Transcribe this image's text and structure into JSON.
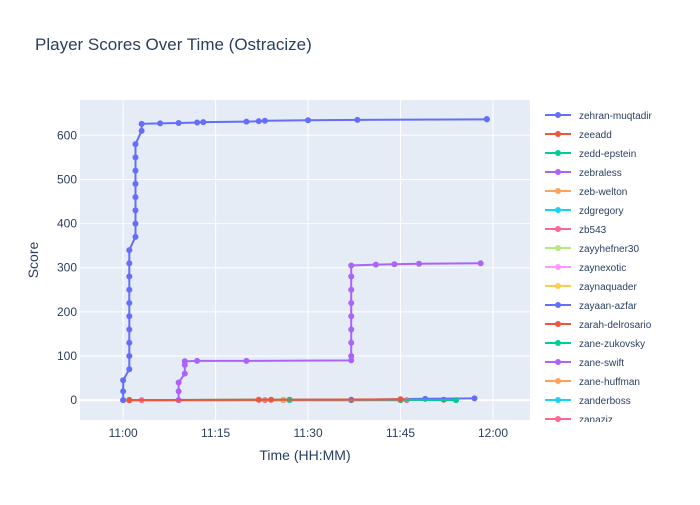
{
  "chart_data": {
    "type": "line",
    "title": "Player Scores Over Time (Ostracize)",
    "xlabel": "Time (HH:MM)",
    "ylabel": "Score",
    "x_range": [
      "10:53",
      "12:06"
    ],
    "ylim": [
      -45,
      680
    ],
    "x_ticks": [
      {
        "t": "11:00",
        "label": "11:00"
      },
      {
        "t": "11:15",
        "label": "11:15"
      },
      {
        "t": "11:30",
        "label": "11:30"
      },
      {
        "t": "11:45",
        "label": "11:45"
      },
      {
        "t": "12:00",
        "label": "12:00"
      }
    ],
    "y_ticks": [
      0,
      100,
      200,
      300,
      400,
      500,
      600
    ],
    "grid": true,
    "legend_position": "right",
    "series": [
      {
        "name": "zehran-muqtadir",
        "color": "#636efa",
        "points": [
          {
            "t": "11:00",
            "y": 0
          },
          {
            "t": "11:00",
            "y": 20
          },
          {
            "t": "11:00",
            "y": 45
          },
          {
            "t": "11:01",
            "y": 70
          },
          {
            "t": "11:01",
            "y": 100
          },
          {
            "t": "11:01",
            "y": 130
          },
          {
            "t": "11:01",
            "y": 160
          },
          {
            "t": "11:01",
            "y": 190
          },
          {
            "t": "11:01",
            "y": 220
          },
          {
            "t": "11:01",
            "y": 250
          },
          {
            "t": "11:01",
            "y": 280
          },
          {
            "t": "11:01",
            "y": 310
          },
          {
            "t": "11:01",
            "y": 340
          },
          {
            "t": "11:02",
            "y": 370
          },
          {
            "t": "11:02",
            "y": 400
          },
          {
            "t": "11:02",
            "y": 430
          },
          {
            "t": "11:02",
            "y": 460
          },
          {
            "t": "11:02",
            "y": 490
          },
          {
            "t": "11:02",
            "y": 520
          },
          {
            "t": "11:02",
            "y": 550
          },
          {
            "t": "11:02",
            "y": 580
          },
          {
            "t": "11:03",
            "y": 610
          },
          {
            "t": "11:03",
            "y": 626
          },
          {
            "t": "11:06",
            "y": 627
          },
          {
            "t": "11:09",
            "y": 628
          },
          {
            "t": "11:12",
            "y": 629
          },
          {
            "t": "11:13",
            "y": 630
          },
          {
            "t": "11:20",
            "y": 631
          },
          {
            "t": "11:22",
            "y": 632
          },
          {
            "t": "11:23",
            "y": 633
          },
          {
            "t": "11:30",
            "y": 634
          },
          {
            "t": "11:38",
            "y": 635
          },
          {
            "t": "11:59",
            "y": 636
          },
          {
            "t": "11:59",
            "y": 637
          }
        ]
      },
      {
        "name": "zeeadd",
        "color": "#ef553b",
        "points": [
          {
            "t": "11:01",
            "y": 0
          },
          {
            "t": "11:22",
            "y": 1
          },
          {
            "t": "11:24",
            "y": 1
          },
          {
            "t": "11:45",
            "y": 2
          }
        ]
      },
      {
        "name": "zedd-epstein",
        "color": "#00cc96",
        "points": [
          {
            "t": "11:01",
            "y": 0
          },
          {
            "t": "11:27",
            "y": 1
          },
          {
            "t": "11:45",
            "y": 1
          },
          {
            "t": "11:54",
            "y": 0
          }
        ]
      },
      {
        "name": "zebraless",
        "color": "#ab63fa",
        "points": [
          {
            "t": "11:09",
            "y": 0
          },
          {
            "t": "11:09",
            "y": 20
          },
          {
            "t": "11:09",
            "y": 40
          },
          {
            "t": "11:10",
            "y": 60
          },
          {
            "t": "11:10",
            "y": 80
          },
          {
            "t": "11:10",
            "y": 88
          },
          {
            "t": "11:12",
            "y": 89
          },
          {
            "t": "11:20",
            "y": 89
          },
          {
            "t": "11:37",
            "y": 90
          },
          {
            "t": "11:37",
            "y": 100
          },
          {
            "t": "11:37",
            "y": 130
          },
          {
            "t": "11:37",
            "y": 160
          },
          {
            "t": "11:37",
            "y": 190
          },
          {
            "t": "11:37",
            "y": 220
          },
          {
            "t": "11:37",
            "y": 250
          },
          {
            "t": "11:37",
            "y": 280
          },
          {
            "t": "11:37",
            "y": 305
          },
          {
            "t": "11:41",
            "y": 307
          },
          {
            "t": "11:44",
            "y": 308
          },
          {
            "t": "11:48",
            "y": 309
          },
          {
            "t": "11:58",
            "y": 310
          }
        ]
      },
      {
        "name": "zeb-welton",
        "color": "#ffa15a",
        "points": [
          {
            "t": "11:00",
            "y": 0
          },
          {
            "t": "11:26",
            "y": 0
          },
          {
            "t": "11:27",
            "y": 1
          }
        ]
      },
      {
        "name": "zdgregory",
        "color": "#19d3f3",
        "points": [
          {
            "t": "11:01",
            "y": 0
          },
          {
            "t": "11:26",
            "y": 0
          },
          {
            "t": "11:27",
            "y": 0
          }
        ]
      },
      {
        "name": "zb543",
        "color": "#ff6692",
        "points": [
          {
            "t": "11:03",
            "y": 0
          },
          {
            "t": "11:23",
            "y": 0
          },
          {
            "t": "11:46",
            "y": 0
          }
        ]
      },
      {
        "name": "zayyhefner30",
        "color": "#b6e880",
        "points": [
          {
            "t": "11:01",
            "y": 0
          },
          {
            "t": "11:27",
            "y": 0
          }
        ]
      },
      {
        "name": "zaynexotic",
        "color": "#ff97ff",
        "points": [
          {
            "t": "11:01",
            "y": 0
          },
          {
            "t": "11:26",
            "y": 0
          }
        ]
      },
      {
        "name": "zaynaquader",
        "color": "#fecb52",
        "points": [
          {
            "t": "11:01",
            "y": 0
          },
          {
            "t": "11:26",
            "y": 1
          }
        ]
      },
      {
        "name": "zayaan-azfar",
        "color": "#636efa",
        "points": [
          {
            "t": "11:01",
            "y": 0
          },
          {
            "t": "11:37",
            "y": 1
          },
          {
            "t": "11:49",
            "y": 3
          },
          {
            "t": "11:57",
            "y": 4
          }
        ]
      },
      {
        "name": "zarah-delrosario",
        "color": "#ef553b",
        "points": [
          {
            "t": "11:01",
            "y": 0
          },
          {
            "t": "11:37",
            "y": 0
          },
          {
            "t": "11:52",
            "y": 1
          }
        ]
      },
      {
        "name": "zane-zukovsky",
        "color": "#00cc96",
        "points": [
          {
            "t": "11:01",
            "y": 0
          },
          {
            "t": "11:45",
            "y": 0
          }
        ]
      },
      {
        "name": "zane-swift",
        "color": "#ab63fa",
        "points": [
          {
            "t": "11:01",
            "y": 0
          },
          {
            "t": "11:09",
            "y": 0
          }
        ]
      },
      {
        "name": "zane-huffman",
        "color": "#ffa15a",
        "points": [
          {
            "t": "11:00",
            "y": 0
          },
          {
            "t": "11:01",
            "y": 0
          }
        ]
      },
      {
        "name": "zanderboss",
        "color": "#19d3f3",
        "points": [
          {
            "t": "11:01",
            "y": 0
          },
          {
            "t": "11:27",
            "y": 0
          }
        ]
      },
      {
        "name": "zanaziz",
        "color": "#ff6692",
        "points": [
          {
            "t": "11:01",
            "y": 0
          }
        ]
      }
    ]
  }
}
